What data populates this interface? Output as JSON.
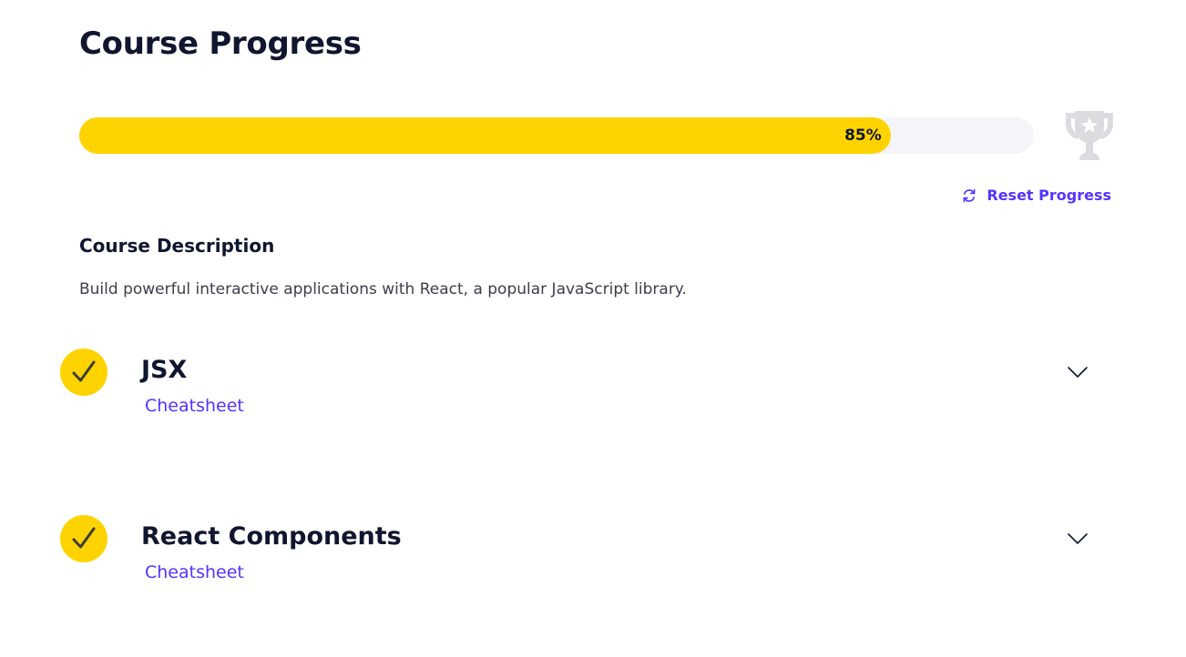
{
  "page": {
    "title": "Course Progress"
  },
  "progress": {
    "percent": 85,
    "label": "85%",
    "fill_color": "#ffd300",
    "track_color": "#f5f5f9",
    "trophy_icon": "trophy-icon"
  },
  "reset": {
    "label": "Reset Progress",
    "icon": "refresh-icon",
    "color": "#5533ff"
  },
  "description": {
    "heading": "Course Description",
    "text": "Build powerful interactive applications with React, a popular JavaScript library."
  },
  "modules": [
    {
      "title": "JSX",
      "link_label": "Cheatsheet",
      "status_icon": "checkmark-icon",
      "toggle_icon": "chevron-down-icon"
    },
    {
      "title": "React Components",
      "link_label": "Cheatsheet",
      "status_icon": "checkmark-icon",
      "toggle_icon": "chevron-down-icon"
    }
  ]
}
